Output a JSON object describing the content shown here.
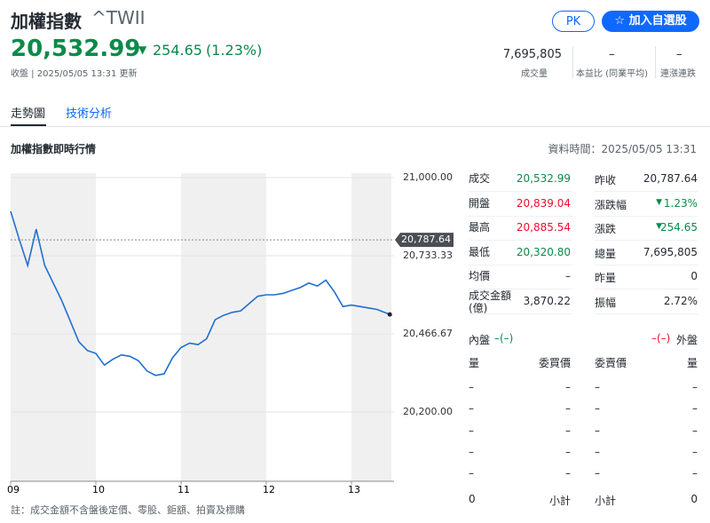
{
  "header": {
    "title": "加權指數",
    "symbol": "^TWII",
    "price": "20,532.99",
    "change": "254.65",
    "change_pct": "(1.23%)",
    "status": "收盤 | 2025/05/05 13:31 更新",
    "buttons": [
      "PK",
      "加入自選股"
    ]
  },
  "stats": [
    {
      "value": "7,695,805",
      "label": "成交量"
    },
    {
      "value": "–",
      "label": "本益比 (同業平均)"
    },
    {
      "value": "–",
      "label": "連漲連跌"
    }
  ],
  "tabs": [
    "走勢圖",
    "技術分析"
  ],
  "section": {
    "title": "加權指數即時行情",
    "data_time": "資料時間：2025/05/05 13:31"
  },
  "chart_data": {
    "type": "line",
    "x": [
      9.0,
      9.1,
      9.2,
      9.3,
      9.4,
      9.5,
      9.6,
      9.7,
      9.8,
      9.9,
      10.0,
      10.1,
      10.2,
      10.3,
      10.4,
      10.5,
      10.6,
      10.7,
      10.8,
      10.9,
      11.0,
      11.1,
      11.2,
      11.3,
      11.4,
      11.5,
      11.6,
      11.7,
      11.8,
      11.9,
      12.0,
      12.1,
      12.2,
      12.3,
      12.4,
      12.5,
      12.6,
      12.7,
      12.8,
      12.9,
      13.0,
      13.1,
      13.2,
      13.3,
      13.45
    ],
    "series": [
      {
        "name": "加權指數",
        "color": "#1f6fd1",
        "values": [
          20885,
          20790,
          20700,
          20824,
          20700,
          20640,
          20580,
          20510,
          20440,
          20410,
          20400,
          20360,
          20380,
          20395,
          20390,
          20375,
          20340,
          20325,
          20330,
          20385,
          20420,
          20435,
          20430,
          20450,
          20515,
          20530,
          20540,
          20545,
          20570,
          20595,
          20600,
          20600,
          20605,
          20615,
          20625,
          20640,
          20630,
          20650,
          20610,
          20560,
          20565,
          20560,
          20555,
          20550,
          20533
        ]
      }
    ],
    "reference": {
      "value": 20787.64,
      "label": "20,787.64"
    },
    "xlim": [
      9,
      13.5
    ],
    "ylim": [
      20200,
      21000
    ],
    "xticks": [
      {
        "value": 9,
        "label": "09"
      },
      10,
      11,
      12,
      13
    ],
    "yticks": [
      {
        "value": 21000,
        "label": "21,000.00"
      },
      {
        "value": 20733.33,
        "label": "20,733.33"
      },
      {
        "value": 20466.67,
        "label": "20,466.67"
      },
      {
        "value": 20200,
        "label": "20,200.00"
      }
    ]
  },
  "quote": [
    [
      "成交",
      "20,532.99",
      "昨收",
      "20,787.64"
    ],
    [
      "開盤",
      "20,839.04",
      "漲跌幅",
      "1.23%"
    ],
    [
      "最高",
      "20,885.54",
      "漲跌",
      "254.65"
    ],
    [
      "最低",
      "20,320.80",
      "總量",
      "7,695,805"
    ],
    [
      "均價",
      "–",
      "昨量",
      "0"
    ],
    [
      "成交金額(億)",
      "3,870.22",
      "振幅",
      "2.72%"
    ]
  ],
  "book": {
    "inner": "內盤",
    "inner_value": "–(–)",
    "outer_value": "–(–)",
    "outer": "外盤",
    "headers": [
      "量",
      "委買價",
      "委賣價",
      "量"
    ],
    "rows": [
      [
        "–",
        "–",
        "–",
        "–"
      ],
      [
        "–",
        "–",
        "–",
        "–"
      ],
      [
        "–",
        "–",
        "–",
        "–"
      ],
      [
        "–",
        "–",
        "–",
        "–"
      ],
      [
        "–",
        "–",
        "–",
        "–"
      ]
    ],
    "footer": [
      "0",
      "小計",
      "小計",
      "0"
    ]
  },
  "note": "註：成交金額不含盤後定價、零股、鉅額、拍賣及標購"
}
